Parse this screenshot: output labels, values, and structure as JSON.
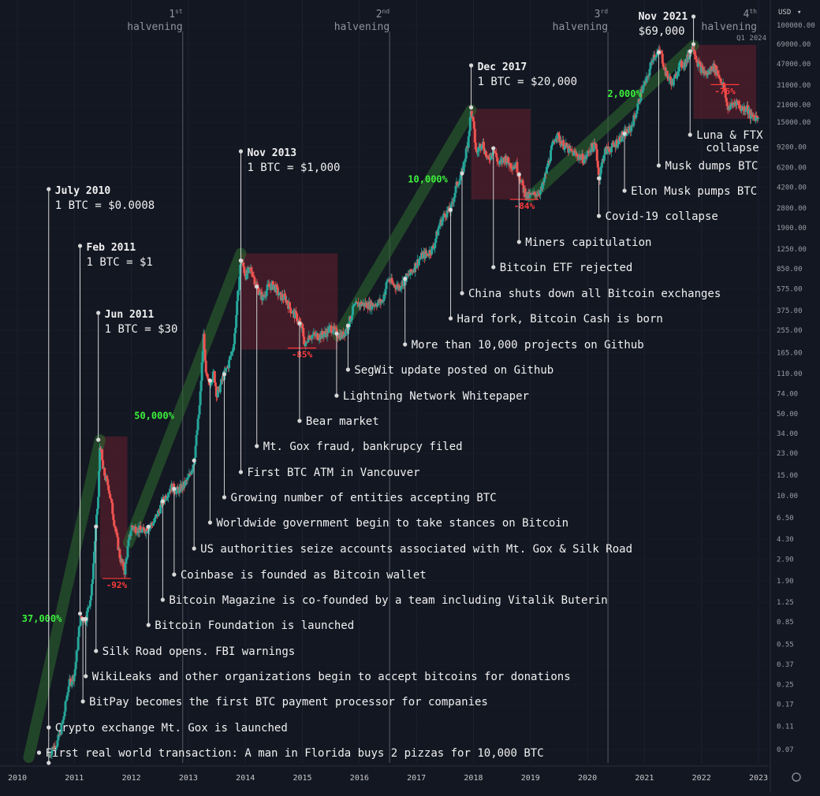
{
  "chart_data": {
    "type": "candlestick",
    "asset": "BTC",
    "currency": "USD",
    "y_scale": "log",
    "ylim": [
      0.05,
      130000
    ],
    "xlim": [
      2010.0,
      2023.3
    ],
    "y_ticks": [
      "100000.00",
      "69000.00",
      "47000.00",
      "31000.00",
      "21000.00",
      "15000.00",
      "9200.00",
      "6200.00",
      "4200.00",
      "2800.00",
      "1900.00",
      "1250.00",
      "850.00",
      "575.00",
      "375.00",
      "255.00",
      "165.00",
      "110.00",
      "74.00",
      "50.00",
      "34.00",
      "23.00",
      "15.00",
      "10.00",
      "6.50",
      "4.30",
      "2.90",
      "1.90",
      "1.25",
      "0.85",
      "0.55",
      "0.37",
      "0.25",
      "0.17",
      "0.11",
      "0.07"
    ],
    "x_ticks": [
      "2010",
      "2011",
      "2012",
      "2013",
      "2014",
      "2015",
      "2016",
      "2017",
      "2018",
      "2019",
      "2020",
      "2021",
      "2022",
      "2023"
    ],
    "price_path": [
      [
        2010.55,
        0.06
      ],
      [
        2010.6,
        0.07
      ],
      [
        2010.7,
        0.08
      ],
      [
        2010.8,
        0.12
      ],
      [
        2010.9,
        0.25
      ],
      [
        2011.0,
        0.3
      ],
      [
        2011.05,
        0.5
      ],
      [
        2011.1,
        0.9
      ],
      [
        2011.2,
        0.9
      ],
      [
        2011.3,
        1.5
      ],
      [
        2011.35,
        3.5
      ],
      [
        2011.42,
        10
      ],
      [
        2011.45,
        30
      ],
      [
        2011.5,
        17
      ],
      [
        2011.55,
        14
      ],
      [
        2011.6,
        12
      ],
      [
        2011.7,
        6
      ],
      [
        2011.8,
        3
      ],
      [
        2011.88,
        2.3
      ],
      [
        2011.95,
        4
      ],
      [
        2012.0,
        5.5
      ],
      [
        2012.2,
        5
      ],
      [
        2012.4,
        6
      ],
      [
        2012.55,
        9
      ],
      [
        2012.65,
        11
      ],
      [
        2012.7,
        12
      ],
      [
        2012.8,
        11
      ],
      [
        2012.9,
        12
      ],
      [
        2013.0,
        14
      ],
      [
        2013.1,
        20
      ],
      [
        2013.2,
        60
      ],
      [
        2013.27,
        250
      ],
      [
        2013.3,
        110
      ],
      [
        2013.35,
        90
      ],
      [
        2013.45,
        110
      ],
      [
        2013.5,
        70
      ],
      [
        2013.6,
        100
      ],
      [
        2013.7,
        130
      ],
      [
        2013.8,
        200
      ],
      [
        2013.88,
        600
      ],
      [
        2013.92,
        1000
      ],
      [
        2013.96,
        900
      ],
      [
        2014.0,
        750
      ],
      [
        2014.1,
        850
      ],
      [
        2014.2,
        600
      ],
      [
        2014.3,
        480
      ],
      [
        2014.4,
        600
      ],
      [
        2014.5,
        620
      ],
      [
        2014.6,
        500
      ],
      [
        2014.7,
        480
      ],
      [
        2014.8,
        380
      ],
      [
        2014.9,
        330
      ],
      [
        2015.0,
        260
      ],
      [
        2015.05,
        180
      ],
      [
        2015.1,
        230
      ],
      [
        2015.3,
        230
      ],
      [
        2015.4,
        240
      ],
      [
        2015.5,
        270
      ],
      [
        2015.6,
        240
      ],
      [
        2015.7,
        230
      ],
      [
        2015.8,
        280
      ],
      [
        2015.9,
        400
      ],
      [
        2016.0,
        430
      ],
      [
        2016.2,
        420
      ],
      [
        2016.4,
        450
      ],
      [
        2016.5,
        700
      ],
      [
        2016.6,
        620
      ],
      [
        2016.7,
        600
      ],
      [
        2016.8,
        700
      ],
      [
        2016.9,
        780
      ],
      [
        2017.0,
        950
      ],
      [
        2017.1,
        1100
      ],
      [
        2017.2,
        1150
      ],
      [
        2017.3,
        1300
      ],
      [
        2017.4,
        2000
      ],
      [
        2017.5,
        2500
      ],
      [
        2017.6,
        2700
      ],
      [
        2017.7,
        4300
      ],
      [
        2017.8,
        5500
      ],
      [
        2017.9,
        10000
      ],
      [
        2017.96,
        19000
      ],
      [
        2018.0,
        14000
      ],
      [
        2018.05,
        8000
      ],
      [
        2018.15,
        10500
      ],
      [
        2018.25,
        7000
      ],
      [
        2018.35,
        9000
      ],
      [
        2018.45,
        6500
      ],
      [
        2018.55,
        7500
      ],
      [
        2018.65,
        6500
      ],
      [
        2018.75,
        6500
      ],
      [
        2018.88,
        4000
      ],
      [
        2018.95,
        3500
      ],
      [
        2019.05,
        3600
      ],
      [
        2019.2,
        4000
      ],
      [
        2019.35,
        8000
      ],
      [
        2019.45,
        12000
      ],
      [
        2019.55,
        10000
      ],
      [
        2019.7,
        8500
      ],
      [
        2019.8,
        8000
      ],
      [
        2019.95,
        7200
      ],
      [
        2020.05,
        9000
      ],
      [
        2020.15,
        9500
      ],
      [
        2020.2,
        5000
      ],
      [
        2020.3,
        8500
      ],
      [
        2020.45,
        9300
      ],
      [
        2020.6,
        11500
      ],
      [
        2020.75,
        13000
      ],
      [
        2020.85,
        18000
      ],
      [
        2020.95,
        28000
      ],
      [
        2021.05,
        35000
      ],
      [
        2021.15,
        55000
      ],
      [
        2021.28,
        60000
      ],
      [
        2021.38,
        38000
      ],
      [
        2021.5,
        32000
      ],
      [
        2021.6,
        45000
      ],
      [
        2021.72,
        48000
      ],
      [
        2021.8,
        60000
      ],
      [
        2021.86,
        67000
      ],
      [
        2021.92,
        50000
      ],
      [
        2022.0,
        42000
      ],
      [
        2022.1,
        38000
      ],
      [
        2022.2,
        45000
      ],
      [
        2022.3,
        38000
      ],
      [
        2022.4,
        29000
      ],
      [
        2022.45,
        20000
      ],
      [
        2022.55,
        21000
      ],
      [
        2022.6,
        23000
      ],
      [
        2022.7,
        19500
      ],
      [
        2022.8,
        20000
      ],
      [
        2022.87,
        16500
      ],
      [
        2022.95,
        16800
      ],
      [
        2023.0,
        16700
      ]
    ]
  },
  "currency_label": "USD",
  "halvenings": [
    {
      "n": "1",
      "sup": "st",
      "label": "halvening",
      "x": 2012.9
    },
    {
      "n": "2",
      "sup": "nd",
      "label": "halvening",
      "x": 2016.53
    },
    {
      "n": "3",
      "sup": "rd",
      "label": "halvening",
      "x": 2020.36
    },
    {
      "n": "4",
      "sup": "th",
      "label": "halvening",
      "sub": "Q1 2024",
      "x": 2023.3
    }
  ],
  "price_callouts": [
    {
      "date": "July 2010",
      "price": "1 BTC = $0.0008"
    },
    {
      "date": "Feb 2011",
      "price": "1 BTC = $1"
    },
    {
      "date": "Jun 2011",
      "price": "1 BTC = $30"
    },
    {
      "date": "Nov 2013",
      "price": "1 BTC = $1,000"
    },
    {
      "date": "Dec 2017",
      "price": "1 BTC = $20,000"
    },
    {
      "date": "Nov 2021",
      "price": "$69,000"
    }
  ],
  "gains": [
    "37,000%",
    "50,000%",
    "10,000%",
    "2,000%"
  ],
  "drawdowns": [
    "-92%",
    "-85%",
    "-84%",
    "-76%"
  ],
  "events": [
    {
      "text": "First real world transaction: A man in Florida buys 2 pizzas for 10,000 BTC",
      "x": 2010.38
    },
    {
      "text": "Crypto exchange Mt. Gox is launched",
      "x": 2010.55
    },
    {
      "text": "BitPay becomes the first BTC payment processor for companies",
      "x": 2011.15
    },
    {
      "text": "WikiLeaks and other organizations begin to accept bitcoins for donations",
      "x": 2011.2
    },
    {
      "text": "Silk Road opens. FBI warnings",
      "x": 2011.38
    },
    {
      "text": "Bitcoin Foundation is launched",
      "x": 2012.3
    },
    {
      "text": "Bitcoin Magazine is co-founded by a team including Vitalik Buterin",
      "x": 2012.55
    },
    {
      "text": "Coinbase is founded as Bitcoin wallet",
      "x": 2012.75
    },
    {
      "text": "US authorities seize accounts associated with Mt. Gox & Silk Road",
      "x": 2013.1
    },
    {
      "text": "Worldwide government begin to take stances on Bitcoin",
      "x": 2013.38
    },
    {
      "text": "Growing number of entities accepting BTC",
      "x": 2013.63
    },
    {
      "text": "First BTC ATM in Vancouver",
      "x": 2013.92
    },
    {
      "text": "Mt. Gox fraud, bankrupcy filed",
      "x": 2014.2
    },
    {
      "text": "Bear market",
      "x": 2014.95
    },
    {
      "text": "Lightning Network Whitepaper",
      "x": 2015.6
    },
    {
      "text": "SegWit update posted on Github",
      "x": 2015.8
    },
    {
      "text": "More than 10,000 projects on Github",
      "x": 2016.8
    },
    {
      "text": "Hard fork, Bitcoin Cash is born",
      "x": 2017.6
    },
    {
      "text": "China shuts down all Bitcoin exchanges",
      "x": 2017.8
    },
    {
      "text": "Bitcoin ETF rejected",
      "x": 2018.35
    },
    {
      "text": "Miners capitulation",
      "x": 2018.8
    },
    {
      "text": "Covid-19 collapse",
      "x": 2020.2
    },
    {
      "text": "Elon Musk pumps BTC",
      "x": 2020.65
    },
    {
      "text": "Musk dumps BTC",
      "x": 2021.25
    },
    {
      "text": "Luna & FTX",
      "text2": "collapse",
      "x": 2021.8
    }
  ],
  "colors": {
    "background": "#131722",
    "up": "#26a69a",
    "down": "#ef5350",
    "gain": "#3cf03c",
    "loss": "#ff3b3b",
    "trend": "#2e6b2e",
    "box": "#7a2230"
  }
}
